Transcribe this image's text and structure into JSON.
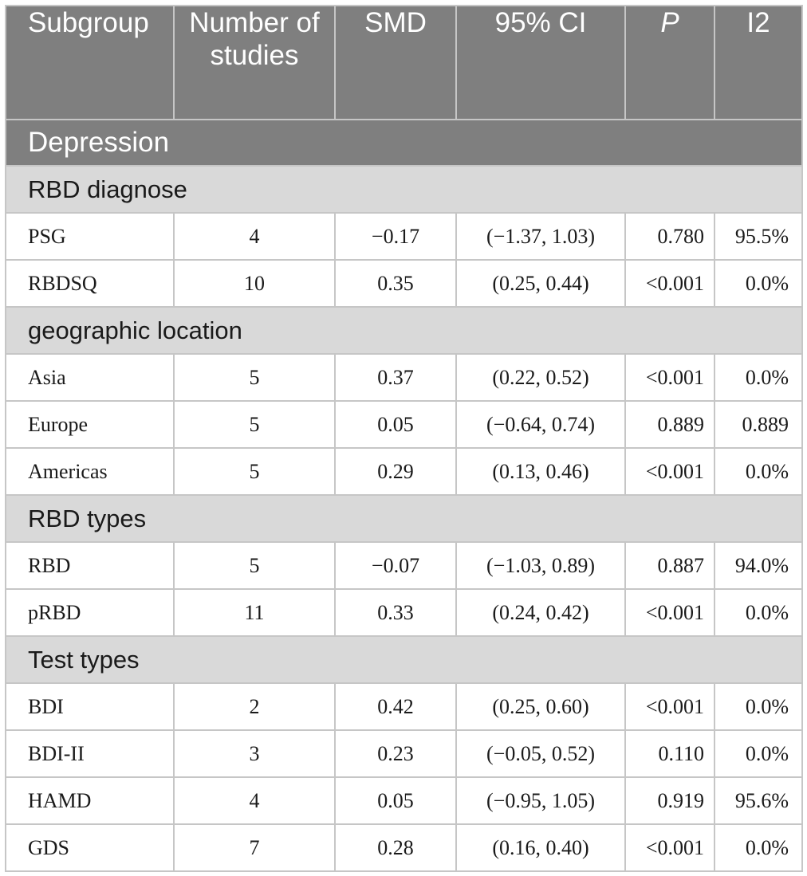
{
  "headers": {
    "subgroup": "Subgroup",
    "number_of_studies": "Number of studies",
    "smd": "SMD",
    "ci": "95% CI",
    "p": "P",
    "i2": "I2"
  },
  "section": "Depression",
  "groups": [
    {
      "title": "RBD diagnose",
      "rows": [
        {
          "name": "PSG",
          "n": "4",
          "smd": "−0.17",
          "ci": "(−1.37, 1.03)",
          "p": "0.780",
          "i2": "95.5%"
        },
        {
          "name": "RBDSQ",
          "n": "10",
          "smd": "0.35",
          "ci": "(0.25, 0.44)",
          "p": "<0.001",
          "i2": "0.0%"
        }
      ]
    },
    {
      "title": "geographic location",
      "rows": [
        {
          "name": "Asia",
          "n": "5",
          "smd": "0.37",
          "ci": "(0.22, 0.52)",
          "p": "<0.001",
          "i2": "0.0%"
        },
        {
          "name": "Europe",
          "n": "5",
          "smd": "0.05",
          "ci": "(−0.64, 0.74)",
          "p": "0.889",
          "i2": "0.889"
        },
        {
          "name": "Americas",
          "n": "5",
          "smd": "0.29",
          "ci": "(0.13, 0.46)",
          "p": "<0.001",
          "i2": "0.0%"
        }
      ]
    },
    {
      "title": "RBD types",
      "rows": [
        {
          "name": "RBD",
          "n": "5",
          "smd": "−0.07",
          "ci": "(−1.03, 0.89)",
          "p": "0.887",
          "i2": "94.0%"
        },
        {
          "name": "pRBD",
          "n": "11",
          "smd": "0.33",
          "ci": "(0.24, 0.42)",
          "p": "<0.001",
          "i2": "0.0%"
        }
      ]
    },
    {
      "title": "Test types",
      "rows": [
        {
          "name": "BDI",
          "n": "2",
          "smd": "0.42",
          "ci": "(0.25, 0.60)",
          "p": "<0.001",
          "i2": "0.0%"
        },
        {
          "name": "BDI-II",
          "n": "3",
          "smd": "0.23",
          "ci": "(−0.05, 0.52)",
          "p": "0.110",
          "i2": "0.0%"
        },
        {
          "name": "HAMD",
          "n": "4",
          "smd": "0.05",
          "ci": "(−0.95, 1.05)",
          "p": "0.919",
          "i2": "95.6%"
        },
        {
          "name": "GDS",
          "n": "7",
          "smd": "0.28",
          "ci": "(0.16, 0.40)",
          "p": "<0.001",
          "i2": "0.0%"
        }
      ]
    }
  ]
}
